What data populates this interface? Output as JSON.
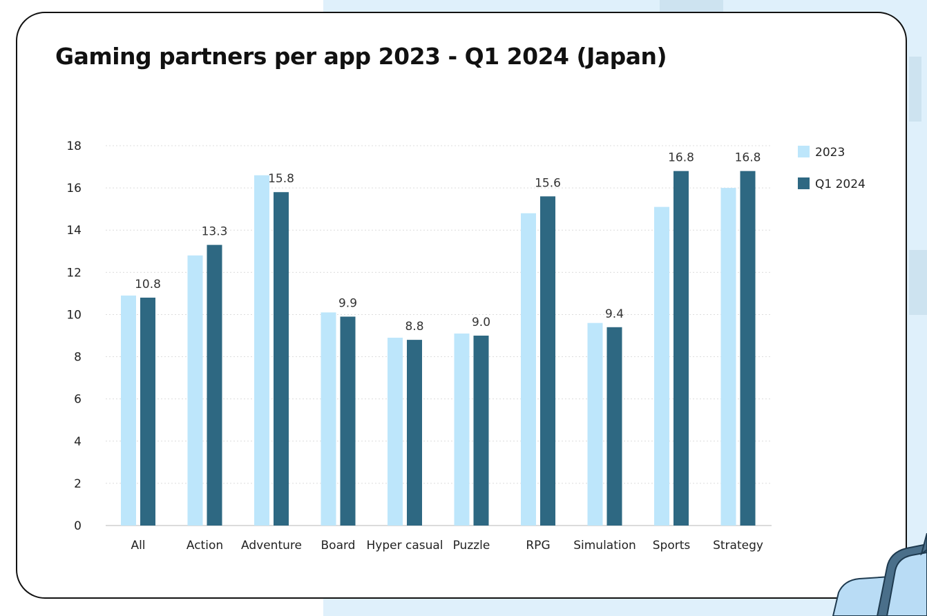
{
  "title": "Gaming partners per app 2023 - Q1 2024 (Japan)",
  "colors": {
    "series_2023": "#bde6fb",
    "series_q1_2024": "#2e6882",
    "grid": "#dcdcdc",
    "axis": "#cfcfcf"
  },
  "chart_data": {
    "type": "bar",
    "title": "Gaming partners per app 2023 - Q1 2024 (Japan)",
    "categories": [
      "All",
      "Action",
      "Adventure",
      "Board",
      "Hyper casual",
      "Puzzle",
      "RPG",
      "Simulation",
      "Sports",
      "Strategy"
    ],
    "series": [
      {
        "name": "2023",
        "color": "#bde6fb",
        "values": [
          10.9,
          12.8,
          16.6,
          10.1,
          8.9,
          9.1,
          14.8,
          9.6,
          15.1,
          16.0
        ]
      },
      {
        "name": "Q1 2024",
        "color": "#2e6882",
        "values": [
          10.8,
          13.3,
          15.8,
          9.9,
          8.8,
          9.0,
          15.6,
          9.4,
          16.8,
          16.8
        ]
      }
    ],
    "data_labels": [
      "10.8",
      "13.3",
      "15.8",
      "9.9",
      "8.8",
      "9.0",
      "15.6",
      "9.4",
      "16.8",
      "16.8"
    ],
    "yticks": [
      "0",
      "2",
      "4",
      "6",
      "8",
      "10",
      "12",
      "14",
      "16",
      "18"
    ],
    "ylim": [
      0,
      18
    ],
    "grid": true,
    "legend": "right"
  }
}
